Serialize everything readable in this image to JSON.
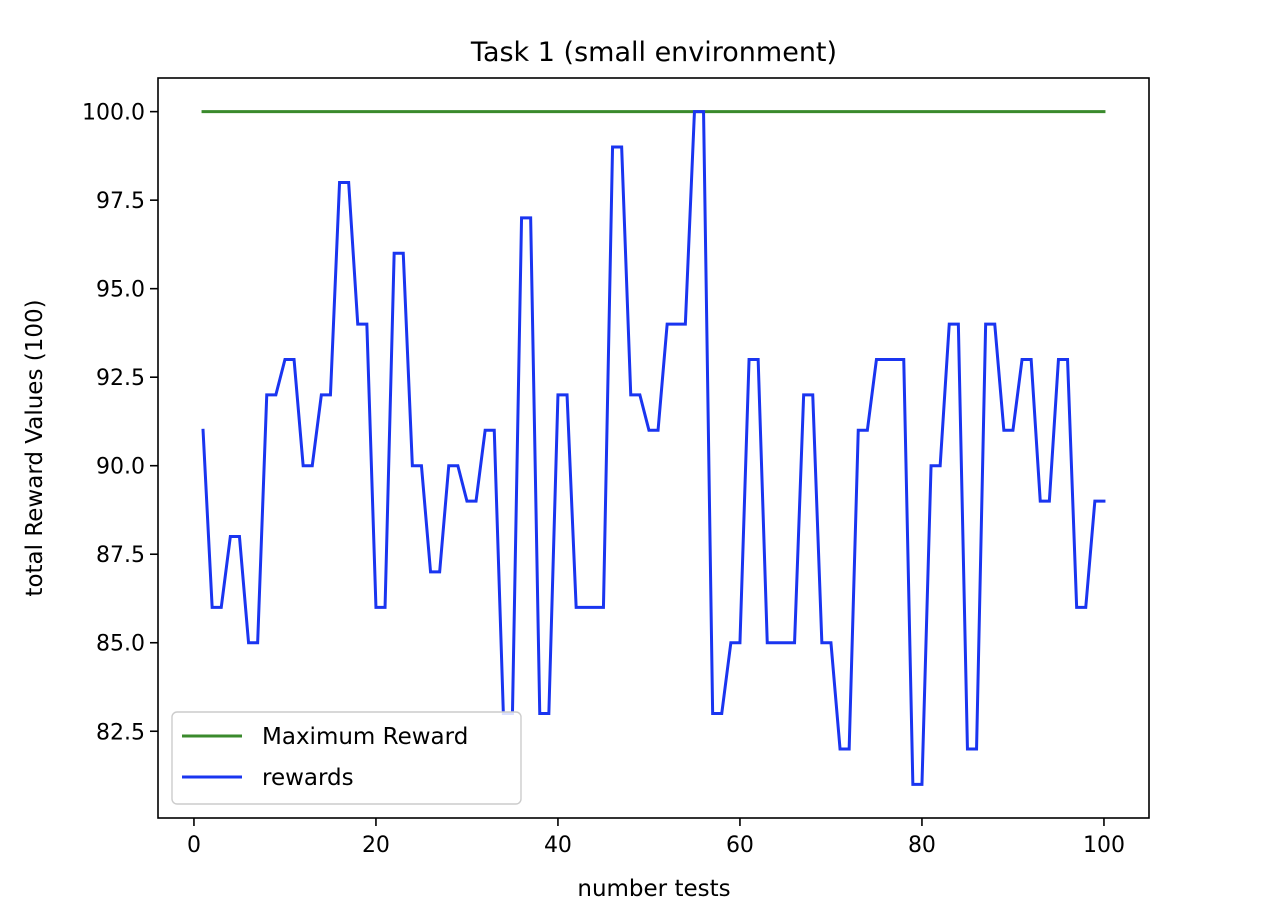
{
  "chart_data": {
    "type": "line",
    "title": "Task 1 (small environment)",
    "xlabel": "number tests",
    "ylabel": "total Reward Values (100)",
    "xlim": [
      -3.95,
      104.95
    ],
    "ylim": [
      80.05,
      100.95
    ],
    "xticks": [
      0,
      20,
      40,
      60,
      80,
      100
    ],
    "xtick_labels": [
      "0",
      "20",
      "40",
      "60",
      "80",
      "100"
    ],
    "yticks": [
      82.5,
      85.0,
      87.5,
      90.0,
      92.5,
      95.0,
      97.5,
      100.0
    ],
    "ytick_labels": [
      "82.5",
      "85.0",
      "87.5",
      "90.0",
      "92.5",
      "95.0",
      "97.5",
      "100.0"
    ],
    "grid": false,
    "legend_position": "lower-left",
    "series": [
      {
        "name": "Maximum Reward",
        "color": "#3a8a2c",
        "x": [
          1,
          100
        ],
        "y": [
          100,
          100
        ]
      },
      {
        "name": "rewards",
        "color": "#1a35f0",
        "x": [
          1,
          2,
          3,
          4,
          5,
          6,
          7,
          8,
          9,
          10,
          11,
          12,
          13,
          14,
          15,
          16,
          17,
          18,
          19,
          20,
          21,
          22,
          23,
          24,
          25,
          26,
          27,
          28,
          29,
          30,
          31,
          32,
          33,
          34,
          35,
          36,
          37,
          38,
          39,
          40,
          41,
          42,
          43,
          44,
          45,
          46,
          47,
          48,
          49,
          50,
          51,
          52,
          53,
          54,
          55,
          56,
          57,
          58,
          59,
          60,
          61,
          62,
          63,
          64,
          65,
          66,
          67,
          68,
          69,
          70,
          71,
          72,
          73,
          74,
          75,
          76,
          77,
          78,
          79,
          80,
          81,
          82,
          83,
          84,
          85,
          86,
          87,
          88,
          89,
          90,
          91,
          92,
          93,
          94,
          95,
          96,
          97,
          98,
          99,
          100
        ],
        "y": [
          91,
          86,
          86,
          88,
          88,
          85,
          85,
          92,
          92,
          93,
          93,
          90,
          90,
          92,
          92,
          98,
          98,
          94,
          94,
          86,
          86,
          96,
          96,
          90,
          90,
          87,
          87,
          90,
          90,
          89,
          89,
          91,
          91,
          83,
          83,
          97,
          97,
          83,
          83,
          92,
          92,
          86,
          86,
          86,
          86,
          99,
          99,
          92,
          92,
          91,
          91,
          94,
          94,
          94,
          100,
          100,
          83,
          83,
          85,
          85,
          93,
          93,
          85,
          85,
          85,
          85,
          92,
          92,
          85,
          85,
          82,
          82,
          91,
          91,
          93,
          93,
          93,
          93,
          81,
          81,
          90,
          90,
          94,
          94,
          82,
          82,
          94,
          94,
          91,
          91,
          93,
          93,
          89,
          89,
          93,
          93,
          86,
          86,
          89,
          89
        ]
      }
    ]
  }
}
